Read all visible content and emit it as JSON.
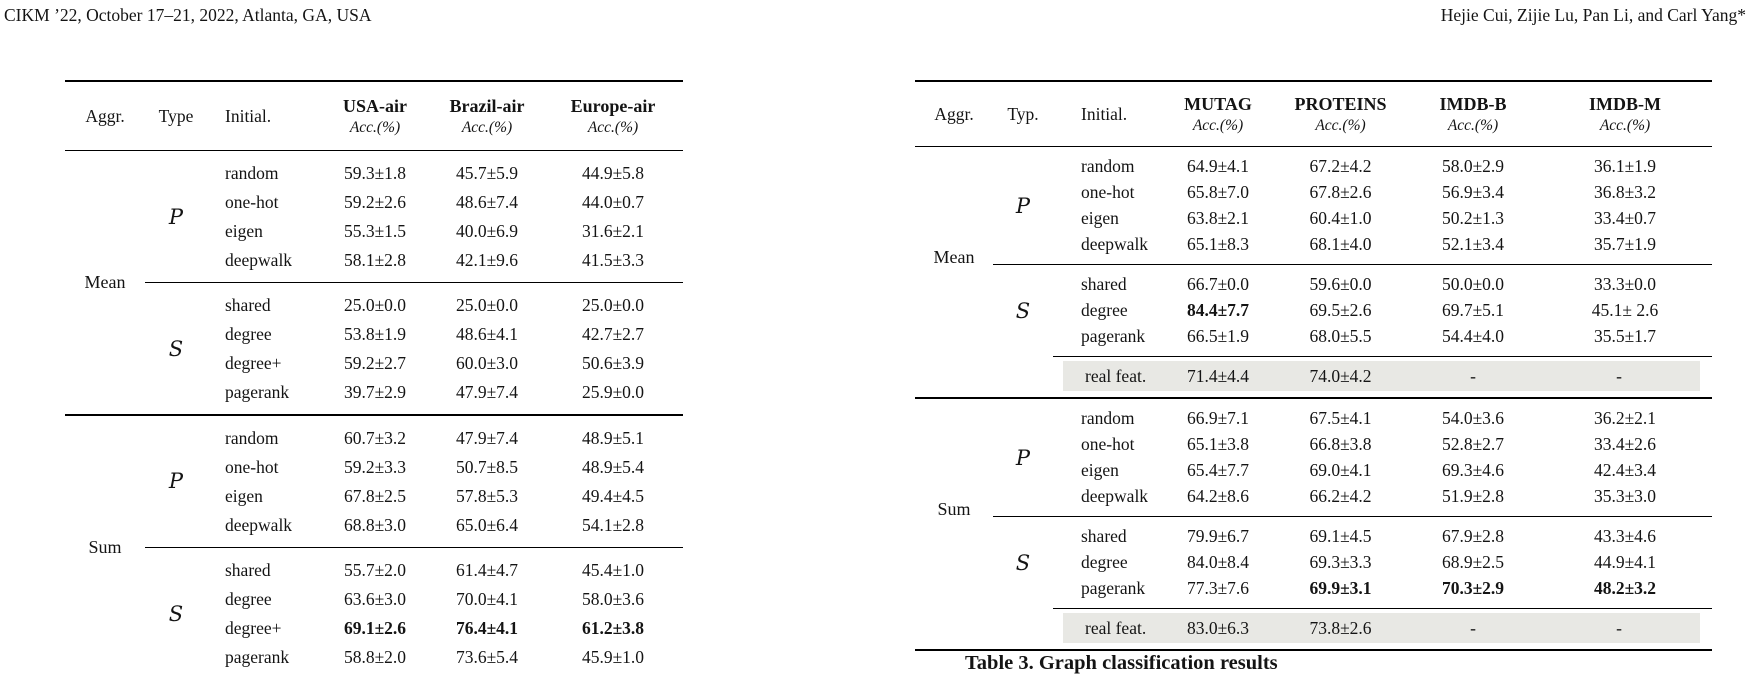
{
  "header": {
    "conference": "CIKM ’22, October 17–21, 2022, Atlanta, GA, USA",
    "authors": "Hejie Cui, Zijie Lu, Pan Li, and Carl Yang*"
  },
  "node_table": {
    "col_headers": {
      "aggr": "Aggr.",
      "type": "Type",
      "initial": "Initial."
    },
    "datasets": [
      {
        "name": "USA-air",
        "metric": "Acc.(%)"
      },
      {
        "name": "Brazil-air",
        "metric": "Acc.(%)"
      },
      {
        "name": "Europe-air",
        "metric": "Acc.(%)"
      }
    ],
    "groups": [
      {
        "aggr": "Mean",
        "subgroups": [
          {
            "type": "P",
            "rows": [
              {
                "initial": "random",
                "values": [
                  "59.3±1.8",
                  "45.7±5.9",
                  "44.9±5.8"
                ],
                "bold": []
              },
              {
                "initial": "one-hot",
                "values": [
                  "59.2±2.6",
                  "48.6±7.4",
                  "44.0±0.7"
                ],
                "bold": []
              },
              {
                "initial": "eigen",
                "values": [
                  "55.3±1.5",
                  "40.0±6.9",
                  "31.6±2.1"
                ],
                "bold": []
              },
              {
                "initial": "deepwalk",
                "values": [
                  "58.1±2.8",
                  "42.1±9.6",
                  "41.5±3.3"
                ],
                "bold": []
              }
            ]
          },
          {
            "type": "S",
            "rows": [
              {
                "initial": "shared",
                "values": [
                  "25.0±0.0",
                  "25.0±0.0",
                  "25.0±0.0"
                ],
                "bold": []
              },
              {
                "initial": "degree",
                "values": [
                  "53.8±1.9",
                  "48.6±4.1",
                  "42.7±2.7"
                ],
                "bold": []
              },
              {
                "initial": "degree+",
                "values": [
                  "59.2±2.7",
                  "60.0±3.0",
                  "50.6±3.9"
                ],
                "bold": []
              },
              {
                "initial": "pagerank",
                "values": [
                  "39.7±2.9",
                  "47.9±7.4",
                  "25.9±0.0"
                ],
                "bold": []
              }
            ]
          }
        ]
      },
      {
        "aggr": "Sum",
        "subgroups": [
          {
            "type": "P",
            "rows": [
              {
                "initial": "random",
                "values": [
                  "60.7±3.2",
                  "47.9±7.4",
                  "48.9±5.1"
                ],
                "bold": []
              },
              {
                "initial": "one-hot",
                "values": [
                  "59.2±3.3",
                  "50.7±8.5",
                  "48.9±5.4"
                ],
                "bold": []
              },
              {
                "initial": "eigen",
                "values": [
                  "67.8±2.5",
                  "57.8±5.3",
                  "49.4±4.5"
                ],
                "bold": []
              },
              {
                "initial": "deepwalk",
                "values": [
                  "68.8±3.0",
                  "65.0±6.4",
                  "54.1±2.8"
                ],
                "bold": []
              }
            ]
          },
          {
            "type": "S",
            "rows": [
              {
                "initial": "shared",
                "values": [
                  "55.7±2.0",
                  "61.4±4.7",
                  "45.4±1.0"
                ],
                "bold": []
              },
              {
                "initial": "degree",
                "values": [
                  "63.6±3.0",
                  "70.0±4.1",
                  "58.0±3.6"
                ],
                "bold": []
              },
              {
                "initial": "degree+",
                "values": [
                  "69.1±2.6",
                  "76.4±4.1",
                  "61.2±3.8"
                ],
                "bold": [
                  0,
                  1,
                  2
                ]
              },
              {
                "initial": "pagerank",
                "values": [
                  "58.8±2.0",
                  "73.6±5.4",
                  "45.9±1.0"
                ],
                "bold": []
              }
            ]
          }
        ]
      }
    ]
  },
  "graph_table": {
    "col_headers": {
      "aggr": "Aggr.",
      "type": "Typ.",
      "initial": "Initial."
    },
    "datasets": [
      {
        "name": "MUTAG",
        "metric": "Acc.(%)"
      },
      {
        "name": "PROTEINS",
        "metric": "Acc.(%)"
      },
      {
        "name": "IMDB-B",
        "metric": "Acc.(%)"
      },
      {
        "name": "IMDB-M",
        "metric": "Acc.(%)"
      }
    ],
    "groups": [
      {
        "aggr": "Mean",
        "subgroups": [
          {
            "type": "P",
            "rows": [
              {
                "initial": "random",
                "values": [
                  "64.9±4.1",
                  "67.2±4.2",
                  "58.0±2.9",
                  "36.1±1.9"
                ],
                "bold": []
              },
              {
                "initial": "one-hot",
                "values": [
                  "65.8±7.0",
                  "67.8±2.6",
                  "56.9±3.4",
                  "36.8±3.2"
                ],
                "bold": []
              },
              {
                "initial": "eigen",
                "values": [
                  "63.8±2.1",
                  "60.4±1.0",
                  "50.2±1.3",
                  "33.4±0.7"
                ],
                "bold": []
              },
              {
                "initial": "deepwalk",
                "values": [
                  "65.1±8.3",
                  "68.1±4.0",
                  "52.1±3.4",
                  "35.7±1.9"
                ],
                "bold": []
              }
            ]
          },
          {
            "type": "S",
            "rows": [
              {
                "initial": "shared",
                "values": [
                  "66.7±0.0",
                  "59.6±0.0",
                  "50.0±0.0",
                  "33.3±0.0"
                ],
                "bold": []
              },
              {
                "initial": "degree",
                "values": [
                  "84.4±7.7",
                  "69.5±2.6",
                  "69.7±5.1",
                  "45.1± 2.6"
                ],
                "bold": [
                  0
                ]
              },
              {
                "initial": "pagerank",
                "values": [
                  "66.5±1.9",
                  "68.0±5.5",
                  "54.4±4.0",
                  "35.5±1.7"
                ],
                "bold": []
              }
            ]
          }
        ],
        "real_feat": {
          "label": "real feat.",
          "values": [
            "71.4±4.4",
            "74.0±4.2",
            "-",
            "-"
          ]
        }
      },
      {
        "aggr": "Sum",
        "subgroups": [
          {
            "type": "P",
            "rows": [
              {
                "initial": "random",
                "values": [
                  "66.9±7.1",
                  "67.5±4.1",
                  "54.0±3.6",
                  "36.2±2.1"
                ],
                "bold": []
              },
              {
                "initial": "one-hot",
                "values": [
                  "65.1±3.8",
                  "66.8±3.8",
                  "52.8±2.7",
                  "33.4±2.6"
                ],
                "bold": []
              },
              {
                "initial": "eigen",
                "values": [
                  "65.4±7.7",
                  "69.0±4.1",
                  "69.3±4.6",
                  "42.4±3.4"
                ],
                "bold": []
              },
              {
                "initial": "deepwalk",
                "values": [
                  "64.2±8.6",
                  "66.2±4.2",
                  "51.9±2.8",
                  "35.3±3.0"
                ],
                "bold": []
              }
            ]
          },
          {
            "type": "S",
            "rows": [
              {
                "initial": "shared",
                "values": [
                  "79.9±6.7",
                  "69.1±4.5",
                  "67.9±2.8",
                  "43.3±4.6"
                ],
                "bold": []
              },
              {
                "initial": "degree",
                "values": [
                  "84.0±8.4",
                  "69.3±3.3",
                  "68.9±2.5",
                  "44.9±4.1"
                ],
                "bold": []
              },
              {
                "initial": "pagerank",
                "values": [
                  "77.3±7.6",
                  "69.9±3.1",
                  "70.3±2.9",
                  "48.2±3.2"
                ],
                "bold": [
                  1,
                  2,
                  3
                ]
              }
            ]
          }
        ],
        "real_feat": {
          "label": "real feat.",
          "values": [
            "83.0±6.3",
            "73.8±2.6",
            "-",
            "-"
          ]
        }
      }
    ],
    "caption": "Table 3. Graph classification results"
  },
  "colors": {
    "rule": "#000000",
    "real_feat_band": "#e8e8e4"
  }
}
